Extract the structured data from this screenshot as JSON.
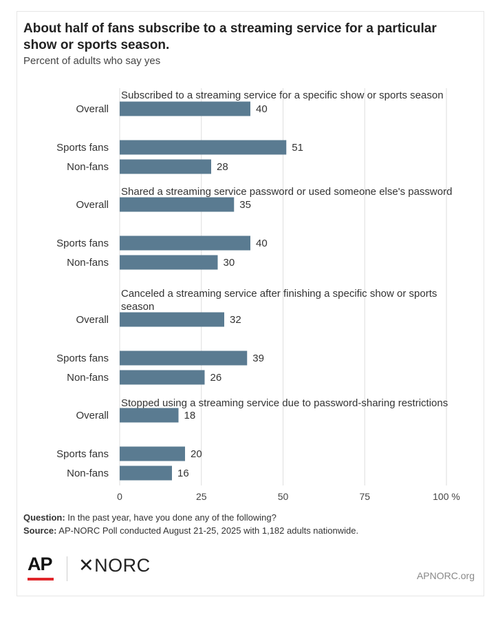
{
  "title": "About half of fans subscribe to a streaming service for a particular show or sports season.",
  "subtitle": "Percent of adults who say yes",
  "chart_data": {
    "type": "bar",
    "orientation": "horizontal",
    "xlim": [
      0,
      100
    ],
    "xticks": [
      "0",
      "25",
      "50",
      "75",
      "100 %"
    ],
    "xtick_values": [
      0,
      25,
      50,
      75,
      100
    ],
    "grid": true,
    "bar_color": "#5a7b91",
    "groups": [
      {
        "label": "Subscribed to a streaming service for a specific show or sports season",
        "bars": [
          {
            "category": "Overall",
            "value": 40
          },
          {
            "category": "Sports fans",
            "value": 51
          },
          {
            "category": "Non-fans",
            "value": 28
          }
        ]
      },
      {
        "label": "Shared a streaming service password or used someone else's password",
        "bars": [
          {
            "category": "Overall",
            "value": 35
          },
          {
            "category": "Sports fans",
            "value": 40
          },
          {
            "category": "Non-fans",
            "value": 30
          }
        ]
      },
      {
        "label": "Canceled a streaming service after finishing a specific show or sports season",
        "bars": [
          {
            "category": "Overall",
            "value": 32
          },
          {
            "category": "Sports fans",
            "value": 39
          },
          {
            "category": "Non-fans",
            "value": 26
          }
        ]
      },
      {
        "label": "Stopped using a streaming service due to password-sharing restrictions",
        "bars": [
          {
            "category": "Overall",
            "value": 18
          },
          {
            "category": "Sports fans",
            "value": 20
          },
          {
            "category": "Non-fans",
            "value": 16
          }
        ]
      }
    ]
  },
  "footer": {
    "question_label": "Question:",
    "question_text": " In the past year, have you done any of the following?",
    "source_label": "Source:",
    "source_text": " AP-NORC Poll conducted August 21-25, 2025 with 1,182 adults nationwide.",
    "logo_ap": "AP",
    "logo_norc": "✕NORC",
    "site": "APNORC.org"
  }
}
